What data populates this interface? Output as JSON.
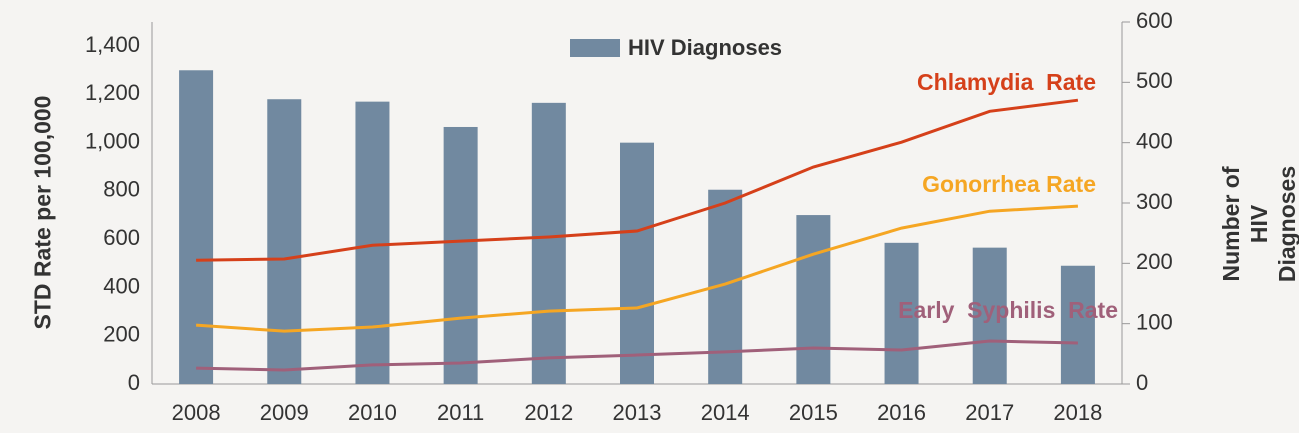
{
  "chart_data": {
    "type": "bar_line",
    "categories": [
      "2008",
      "2009",
      "2010",
      "2011",
      "2012",
      "2013",
      "2014",
      "2015",
      "2016",
      "2017",
      "2018"
    ],
    "y_label": "STD Rate per 100,000",
    "y2_label": "Number of HIV Diagnoses",
    "ylim": [
      0,
      1500
    ],
    "yticks": [
      0,
      200,
      400,
      600,
      800,
      {
        "value": 1000,
        "label": "1,000"
      },
      {
        "value": 1200,
        "label": "1,200"
      },
      {
        "value": 1400,
        "label": "1,400"
      }
    ],
    "y2lim": [
      0,
      600
    ],
    "y2ticks": [
      0,
      100,
      200,
      300,
      400,
      500,
      600
    ],
    "series": [
      {
        "name": "HIV Diagnoses",
        "type": "bar",
        "axis": "y2",
        "color": "#7189a0",
        "values": [
          520,
          472,
          468,
          426,
          466,
          400,
          322,
          280,
          234,
          226,
          196
        ]
      },
      {
        "name": "Chlamydia  Rate",
        "type": "line",
        "color": "#d5401a",
        "values": [
          513,
          518,
          575,
          592,
          609,
          634,
          750,
          899,
          1002,
          1130,
          1176
        ]
      },
      {
        "name": "Gonorrhea Rate",
        "type": "line",
        "color": "#f5a623",
        "values": [
          244,
          219,
          236,
          273,
          302,
          315,
          414,
          538,
          646,
          716,
          737
        ]
      },
      {
        "name": "Early  Syphilis  Rate",
        "type": "line",
        "color": "#a0607a",
        "values": [
          66,
          58,
          79,
          87,
          108,
          120,
          133,
          149,
          141,
          178,
          170
        ]
      }
    ]
  }
}
